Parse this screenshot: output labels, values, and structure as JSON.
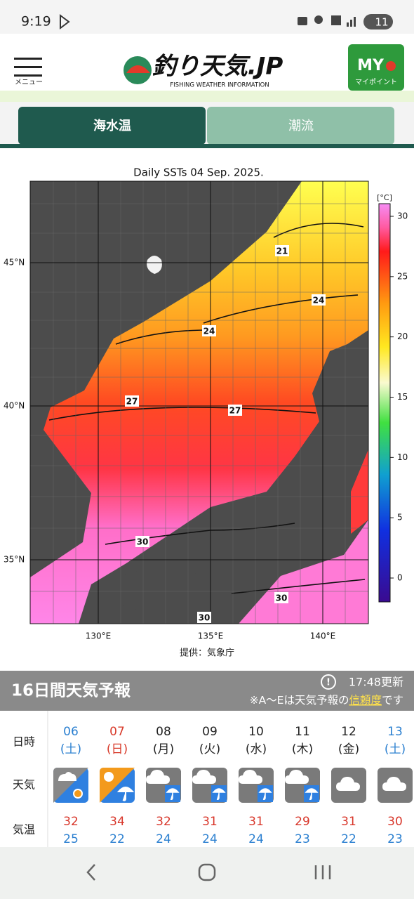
{
  "status_bar": {
    "time": "9:19",
    "battery": "11"
  },
  "header": {
    "menu": "メニュー",
    "logo": "釣り天気.JP",
    "logo_sub": "FISHING WEATHER INFORMATION",
    "my_button": "MY",
    "my_label": "マイポイント"
  },
  "tabs": [
    "海水温",
    "潮流"
  ],
  "sst_map": {
    "title": "Daily SSTs 04 Sep. 2025.",
    "lat_labels": [
      "45°N",
      "40°N",
      "35°N"
    ],
    "lon_labels": [
      "130°E",
      "135°E",
      "140°E"
    ],
    "colorbar_unit": "[°C]",
    "colorbar_ticks": [
      30,
      25,
      20,
      15,
      10,
      5,
      0
    ],
    "contour_labels": [
      21,
      24,
      24,
      27,
      27,
      30,
      30,
      30
    ],
    "credit": "提供：気象庁"
  },
  "forecast": {
    "title": "16日間天気予報",
    "updated": "17:48更新",
    "note": "※A〜Eは天気予報の",
    "note_link": "信頼度",
    "note_end": "です",
    "row_labels": [
      "日時",
      "天気",
      "気温"
    ],
    "days": [
      {
        "date": "06",
        "weekday": "(土)",
        "high": 32,
        "low": 25
      },
      {
        "date": "07",
        "weekday": "(日)",
        "high": 34,
        "low": 22
      },
      {
        "date": "08",
        "weekday": "(月)",
        "high": 32,
        "low": 24
      },
      {
        "date": "09",
        "weekday": "(火)",
        "high": 31,
        "low": 24
      },
      {
        "date": "10",
        "weekday": "(水)",
        "high": 31,
        "low": 24
      },
      {
        "date": "11",
        "weekday": "(木)",
        "high": 29,
        "low": 23
      },
      {
        "date": "12",
        "weekday": "(金)",
        "high": 31,
        "low": 22
      },
      {
        "date": "13",
        "weekday": "(土)",
        "high": 30,
        "low": 23
      }
    ]
  }
}
